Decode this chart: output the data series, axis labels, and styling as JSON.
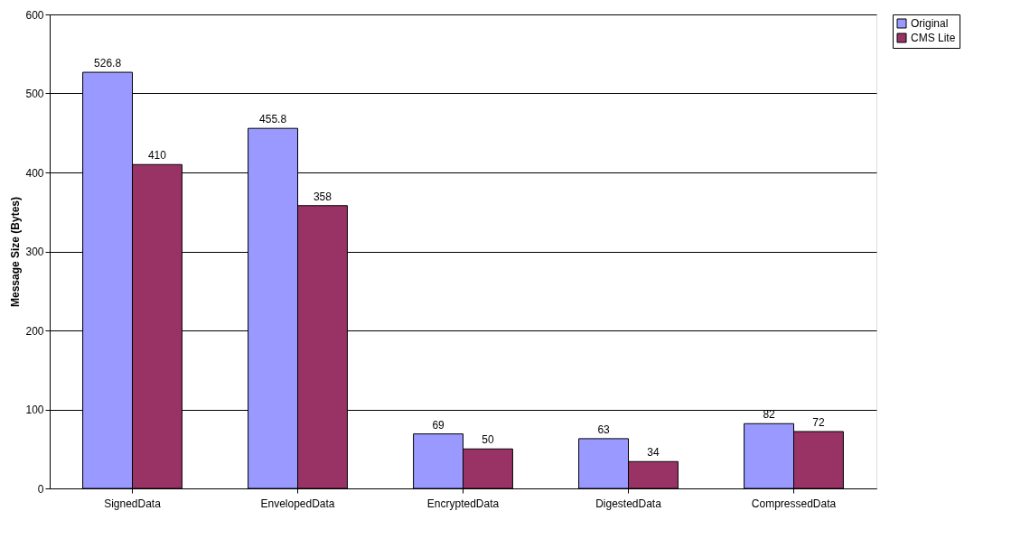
{
  "chart_data": {
    "type": "bar",
    "ylabel": "Message Size (Bytes)",
    "categories": [
      "SignedData",
      "EnvelopedData",
      "EncryptedData",
      "DigestedData",
      "CompressedData"
    ],
    "series": [
      {
        "name": "Original",
        "color": "#9999ff",
        "values": [
          526.8,
          455.8,
          69,
          63,
          82
        ]
      },
      {
        "name": "CMS Lite",
        "color": "#993366",
        "values": [
          410,
          358,
          50,
          34,
          72
        ]
      }
    ],
    "ylim": [
      0,
      600
    ],
    "yticks": [
      0,
      100,
      200,
      300,
      400,
      500,
      600
    ],
    "grid": "y",
    "legend": "right",
    "data_labels": true
  }
}
